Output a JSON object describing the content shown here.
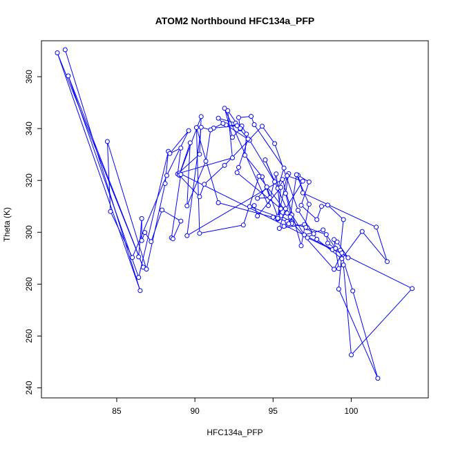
{
  "chart_data": {
    "type": "line",
    "title": "ATOM2 Northbound HFC134a_PFP",
    "xlabel": "HFC134a_PFP",
    "ylabel": "Theta (K)",
    "xlim": [
      81.1,
      104.0
    ],
    "ylim": [
      240,
      370
    ],
    "xticks": [
      85,
      90,
      95,
      100
    ],
    "yticks": [
      240,
      260,
      280,
      300,
      320,
      340,
      360
    ],
    "grid": false,
    "legend": "none",
    "colors": {
      "series": "#0000ff",
      "axis": "#000000"
    },
    "series": [
      {
        "marker": "open-circle",
        "x": [
          81.7,
          86.5,
          81.2,
          86.7,
          81.9,
          86.4,
          88.3,
          88.1,
          86.9,
          84.4,
          84.6,
          86.0,
          88.2,
          89.6,
          88.4,
          89.1,
          88.9,
          90.3,
          90.4,
          89.0,
          90.3,
          90.6,
          91.9,
          94.3,
          95.1,
          96.6,
          97.8,
          99.4,
          100.7,
          102.3,
          101.6,
          96.9,
          96.6,
          97.3,
          96.8,
          97.8,
          98.1,
          98.5,
          99.5,
          99.3,
          100.1,
          101.7,
          99.2,
          99.4,
          98.9,
          96.2,
          95.5,
          95.2,
          94.7,
          91.9,
          92.4,
          92.9,
          92.8,
          93.6,
          93.8,
          95.7,
          95.3,
          96.0,
          95.8,
          96.3,
          94.5,
          95.1,
          93.5,
          92.0,
          93.0,
          93.3,
          93.2,
          94.3,
          94.8,
          94.0,
          94.6,
          95.3,
          93.5,
          93.8,
          94.0,
          95.5,
          95.3,
          95.9,
          96.9,
          95.8,
          95.4,
          97.0,
          97.2,
          98.4,
          98.5,
          99.8,
          99.1,
          98.9,
          99.2,
          99.5,
          100.0,
          103.9,
          89.0,
          92.4,
          92.1,
          92.9,
          92.6,
          91.5,
          91.8,
          91.2,
          92.7,
          93.4,
          92.8,
          92.7,
          95.5,
          95.3,
          95.9,
          94.1,
          93.1,
          90.3,
          90.1,
          91.5,
          95.0,
          95.9,
          96.2,
          97.1,
          97.6,
          97.2,
          98.8,
          99.0,
          98.2,
          97.0,
          96.2,
          96.0,
          95.7,
          96.1,
          96.5,
          97.3,
          96.8,
          95.6,
          89.5,
          90.4,
          91.0,
          90.7,
          89.5,
          89.7,
          89.0,
          89.1,
          88.5,
          88.6,
          89.1,
          87.9,
          87.2,
          86.8,
          86.6,
          86.6,
          86.4
        ],
        "y": [
          370.4,
          277.5,
          369.2,
          286.5,
          360.3,
          282.6,
          331.2,
          318.8,
          285.8,
          335.0,
          308.0,
          290.3,
          321.9,
          339.2,
          330.4,
          332.5,
          322.5,
          330.1,
          344.6,
          322.0,
          313.7,
          318.5,
          325.8,
          340.9,
          334.2,
          308.5,
          297.3,
          289.8,
          300.3,
          288.7,
          302.0,
          315.2,
          322.0,
          319.4,
          310.4,
          304.9,
          310.0,
          310.5,
          304.9,
          293.1,
          277.4,
          243.7,
          278.1,
          292.0,
          285.7,
          303.9,
          306.3,
          322.5,
          310.3,
          347.8,
          336.6,
          339.9,
          344.2,
          344.7,
          341.5,
          324.8,
          317.0,
          322.6,
          315.0,
          303.1,
          327.9,
          319.5,
          335.5,
          341.4,
          341.0,
          337.9,
          329.7,
          321.4,
          313.4,
          313.1,
          317.5,
          306.0,
          309.9,
          310.3,
          306.3,
          317.3,
          305.1,
          321.8,
          319.7,
          309.1,
          301.5,
          303.0,
          301.7,
          299.1,
          295.8,
          290.2,
          296.3,
          297.2,
          286.0,
          287.4,
          252.7,
          278.3,
          322.8,
          328.7,
          346.9,
          340.1,
          342.1,
          344.0,
          342.0,
          340.2,
          341.1,
          336.0,
          325.0,
          323.0,
          309.1,
          305.4,
          307.4,
          321.6,
          302.8,
          299.6,
          340.4,
          311.4,
          305.8,
          304.2,
          303.4,
          301.9,
          299.4,
          297.9,
          293.3,
          293.8,
          300.9,
          299.0,
          306.7,
          303.3,
          302.3,
          305.9,
          322.2,
          310.8,
          294.8,
          320.4,
          298.7,
          340.5,
          339.5,
          327.4,
          310.2,
          334.5,
          322.1,
          322.3,
          297.9,
          297.5,
          304.3,
          308.6,
          296.4,
          299.9,
          296.8,
          305.3,
          290.5
        ]
      }
    ]
  }
}
